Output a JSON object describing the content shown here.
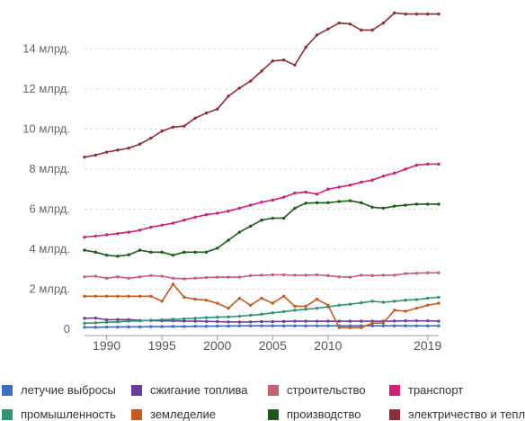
{
  "chart_data": {
    "type": "line",
    "title": "",
    "xlabel": "",
    "ylabel": "",
    "x": [
      1988,
      1989,
      1990,
      1991,
      1992,
      1993,
      1994,
      1995,
      1996,
      1997,
      1998,
      1999,
      2000,
      2001,
      2002,
      2003,
      2004,
      2005,
      2006,
      2007,
      2008,
      2009,
      2010,
      2011,
      2012,
      2013,
      2014,
      2015,
      2016,
      2017,
      2018,
      2019,
      2020
    ],
    "xlim": [
      1988,
      2020
    ],
    "ylim": [
      0,
      16000000000
    ],
    "x_ticks": [
      {
        "value": 1990,
        "label": "1990"
      },
      {
        "value": 1995,
        "label": "1995"
      },
      {
        "value": 2000,
        "label": "2000"
      },
      {
        "value": 2005,
        "label": "2005"
      },
      {
        "value": 2010,
        "label": "2010"
      },
      {
        "value": 2019,
        "label": "2019"
      }
    ],
    "y_ticks": [
      {
        "value": 0,
        "label": "0"
      },
      {
        "value": 2000000000,
        "label": "2 млрд."
      },
      {
        "value": 4000000000,
        "label": "4 млрд."
      },
      {
        "value": 6000000000,
        "label": "6 млрд."
      },
      {
        "value": 8000000000,
        "label": "8 млрд."
      },
      {
        "value": 10000000000,
        "label": "10 млрд."
      },
      {
        "value": 12000000000,
        "label": "12 млрд."
      },
      {
        "value": 14000000000,
        "label": "14 млрд."
      }
    ],
    "grid": true,
    "legend_position": "bottom",
    "series": [
      {
        "name": "летучие выбросы",
        "color": "#3a6fc4",
        "values": [
          0.1,
          0.1,
          0.11,
          0.11,
          0.12,
          0.12,
          0.13,
          0.13,
          0.14,
          0.14,
          0.15,
          0.15,
          0.16,
          0.16,
          0.17,
          0.17,
          0.17,
          0.17,
          0.17,
          0.17,
          0.17,
          0.17,
          0.17,
          0.17,
          0.17,
          0.17,
          0.17,
          0.17,
          0.17,
          0.17,
          0.17,
          0.17,
          0.17
        ]
      },
      {
        "name": "сжигание топлива",
        "color": "#6a3d9a",
        "values": [
          0.55,
          0.56,
          0.47,
          0.48,
          0.48,
          0.44,
          0.43,
          0.42,
          0.42,
          0.41,
          0.4,
          0.39,
          0.38,
          0.37,
          0.36,
          0.37,
          0.38,
          0.38,
          0.39,
          0.4,
          0.4,
          0.4,
          0.4,
          0.4,
          0.4,
          0.4,
          0.4,
          0.4,
          0.41,
          0.42,
          0.42,
          0.42,
          0.4
        ]
      },
      {
        "name": "строительство",
        "color": "#c65f78",
        "values": [
          2.62,
          2.65,
          2.55,
          2.62,
          2.55,
          2.62,
          2.68,
          2.65,
          2.55,
          2.52,
          2.55,
          2.58,
          2.6,
          2.6,
          2.6,
          2.68,
          2.7,
          2.72,
          2.72,
          2.7,
          2.7,
          2.72,
          2.68,
          2.62,
          2.6,
          2.7,
          2.68,
          2.7,
          2.7,
          2.78,
          2.8,
          2.82,
          2.82
        ]
      },
      {
        "name": "транспорт",
        "color": "#cf1f78",
        "values": [
          4.6,
          4.65,
          4.72,
          4.78,
          4.85,
          4.95,
          5.1,
          5.2,
          5.3,
          5.45,
          5.6,
          5.72,
          5.8,
          5.9,
          6.05,
          6.2,
          6.35,
          6.45,
          6.6,
          6.8,
          6.85,
          6.75,
          7.0,
          7.1,
          7.2,
          7.35,
          7.45,
          7.65,
          7.8,
          8.0,
          8.2,
          8.25,
          8.25
        ]
      },
      {
        "name": "промышленность",
        "color": "#2e9474",
        "values": [
          0.3,
          0.32,
          0.35,
          0.37,
          0.4,
          0.42,
          0.45,
          0.47,
          0.5,
          0.52,
          0.55,
          0.58,
          0.6,
          0.62,
          0.65,
          0.7,
          0.75,
          0.82,
          0.88,
          0.95,
          1.0,
          1.05,
          1.12,
          1.2,
          1.25,
          1.32,
          1.4,
          1.35,
          1.4,
          1.45,
          1.48,
          1.55,
          1.6
        ]
      },
      {
        "name": "земледелие",
        "color": "#c45a1c",
        "values": [
          1.65,
          1.65,
          1.65,
          1.65,
          1.65,
          1.65,
          1.65,
          1.4,
          2.25,
          1.6,
          1.5,
          1.45,
          1.3,
          1.05,
          1.55,
          1.2,
          1.55,
          1.3,
          1.65,
          1.15,
          1.15,
          1.5,
          1.2,
          0.08,
          0.08,
          0.08,
          0.3,
          0.32,
          0.95,
          0.9,
          1.05,
          1.2,
          1.3
        ]
      },
      {
        "name": "производство",
        "color": "#1c5a18",
        "values": [
          3.95,
          3.85,
          3.7,
          3.65,
          3.72,
          3.95,
          3.85,
          3.85,
          3.7,
          3.85,
          3.85,
          3.85,
          4.05,
          4.45,
          4.85,
          5.15,
          5.45,
          5.55,
          5.55,
          6.05,
          6.3,
          6.32,
          6.32,
          6.38,
          6.42,
          6.32,
          6.1,
          6.05,
          6.15,
          6.2,
          6.25,
          6.25,
          6.25
        ]
      },
      {
        "name": "электричество и тепло",
        "color": "#8b2f3c",
        "values": [
          8.6,
          8.7,
          8.85,
          8.95,
          9.05,
          9.25,
          9.55,
          9.9,
          10.1,
          10.15,
          10.55,
          10.8,
          11.0,
          11.65,
          12.05,
          12.4,
          12.9,
          13.4,
          13.45,
          13.2,
          14.1,
          14.7,
          15.0,
          15.3,
          15.25,
          14.95,
          14.95,
          15.3,
          15.8,
          15.75,
          15.75,
          15.75,
          15.75
        ]
      }
    ]
  }
}
